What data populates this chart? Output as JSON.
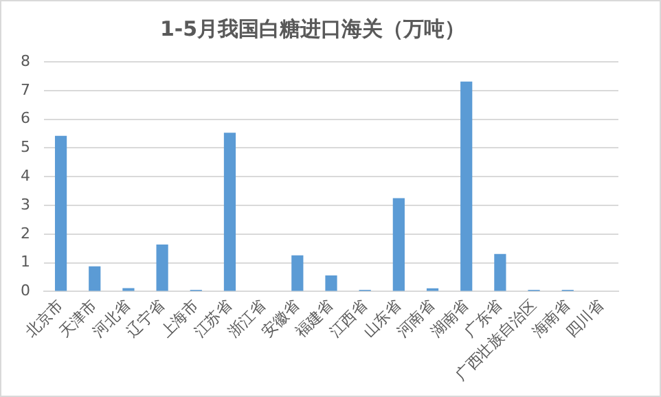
{
  "chart_data": {
    "type": "bar",
    "title": "1-5月我国白糖进口海关（万吨）",
    "categories": [
      "北京市",
      "天津市",
      "河北省",
      "辽宁省",
      "上海市",
      "江苏省",
      "浙江省",
      "安徽省",
      "福建省",
      "江西省",
      "山东省",
      "河南省",
      "湖南省",
      "广东省",
      "广西壮族自治区",
      "海南省",
      "四川省"
    ],
    "values": [
      5.42,
      0.88,
      0.12,
      1.64,
      0.06,
      5.53,
      0,
      1.26,
      0.56,
      0.06,
      3.25,
      0.11,
      7.31,
      1.31,
      0.06,
      0.06,
      0
    ],
    "color": "#5b9bd5",
    "ylim": [
      0,
      8
    ],
    "yticks": [
      0,
      1,
      2,
      3,
      4,
      5,
      6,
      7,
      8
    ],
    "grid": "y",
    "legend": false
  }
}
